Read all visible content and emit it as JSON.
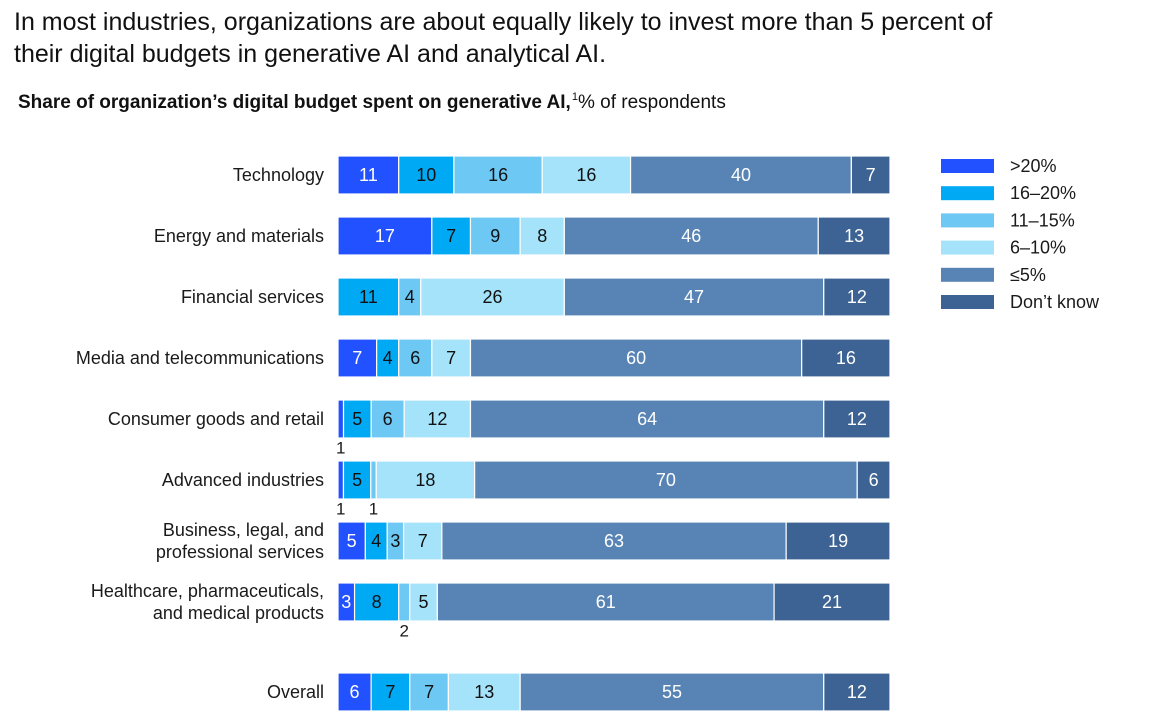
{
  "title_lines": [
    "In most industries, organizations are about equally likely to invest more than 5 percent of",
    "their digital budgets in generative AI and analytical AI."
  ],
  "subtitle_bold": "Share of organization’s digital budget spent on generative AI,",
  "subtitle_footnote": "1",
  "subtitle_rest": "% of respondents",
  "chart_data": {
    "type": "bar",
    "orientation": "horizontal",
    "stacked": true,
    "normalized": "percent",
    "xlim": [
      0,
      100
    ],
    "legend_position": "right",
    "title": "In most industries, organizations are about equally likely to invest more than 5 percent of their digital budgets in generative AI and analytical AI.",
    "subtitle": "Share of organization’s digital budget spent on generative AI, % of respondents",
    "categories": [
      [
        "Technology"
      ],
      [
        "Energy and materials"
      ],
      [
        "Financial services"
      ],
      [
        "Media and telecommunications"
      ],
      [
        "Consumer goods and retail"
      ],
      [
        "Advanced industries"
      ],
      [
        "Business, legal, and",
        "professional services"
      ],
      [
        "Healthcare, pharmaceuticals,",
        "and medical products"
      ],
      [
        "Overall"
      ]
    ],
    "series": [
      {
        "name": ">20%",
        "color": "#2251ff",
        "text_color": "#ffffff",
        "values": [
          11,
          17,
          0,
          7,
          1,
          1,
          5,
          3,
          6
        ]
      },
      {
        "name": "16–20%",
        "color": "#00a9f4",
        "text_color": "#111111",
        "values": [
          10,
          7,
          11,
          4,
          5,
          5,
          4,
          8,
          7
        ]
      },
      {
        "name": "11–15%",
        "color": "#6dc8f3",
        "text_color": "#111111",
        "values": [
          16,
          9,
          4,
          6,
          6,
          1,
          3,
          2,
          7
        ]
      },
      {
        "name": "6–10%",
        "color": "#a5e3fb",
        "text_color": "#111111",
        "values": [
          16,
          8,
          26,
          7,
          12,
          18,
          7,
          5,
          13
        ]
      },
      {
        "name": "≤5%",
        "color": "#5784b4",
        "text_color": "#ffffff",
        "values": [
          40,
          46,
          47,
          60,
          64,
          70,
          63,
          61,
          55
        ]
      },
      {
        "name": "Don’t know",
        "color": "#3c6393",
        "text_color": "#ffffff",
        "values": [
          7,
          13,
          12,
          16,
          12,
          6,
          19,
          21,
          12
        ]
      }
    ]
  }
}
